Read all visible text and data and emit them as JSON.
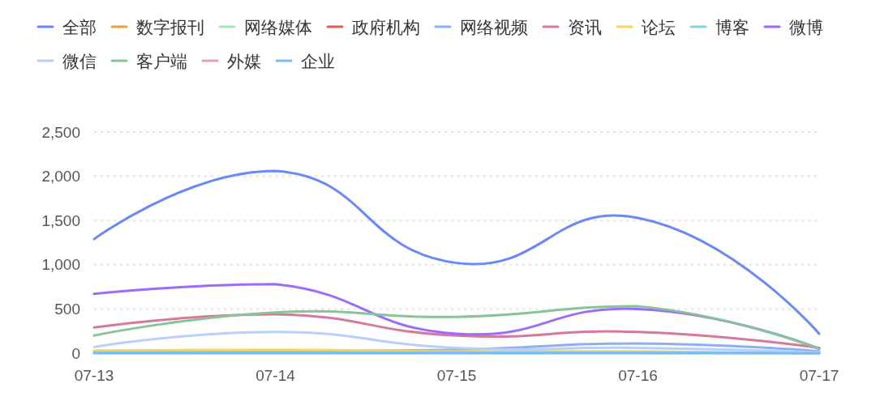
{
  "chart_data": {
    "type": "line",
    "categories": [
      "07-13",
      "07-14",
      "07-15",
      "07-16",
      "07-17"
    ],
    "series": [
      {
        "name": "全部",
        "color": "#6a88fc",
        "values": [
          1290,
          2060,
          1020,
          1530,
          220
        ]
      },
      {
        "name": "数字报刊",
        "color": "#e6a23c",
        "values": [
          null,
          null,
          null,
          null,
          null
        ]
      },
      {
        "name": "网络媒体",
        "color": "#a5e6b4",
        "values": [
          null,
          null,
          null,
          null,
          null
        ]
      },
      {
        "name": "政府机构",
        "color": "#e05a5a",
        "values": [
          null,
          null,
          null,
          null,
          null
        ]
      },
      {
        "name": "网络视频",
        "color": "#8caef8",
        "values": [
          20,
          30,
          40,
          110,
          20
        ]
      },
      {
        "name": "资讯",
        "color": "#d8789a",
        "values": [
          290,
          440,
          200,
          240,
          60
        ]
      },
      {
        "name": "论坛",
        "color": "#f5d55c",
        "values": [
          30,
          40,
          20,
          20,
          0
        ]
      },
      {
        "name": "博客",
        "color": "#8ad0e0",
        "values": [
          10,
          10,
          10,
          10,
          0
        ]
      },
      {
        "name": "微博",
        "color": "#9b6bfb",
        "values": [
          670,
          780,
          220,
          500,
          50
        ]
      },
      {
        "name": "微信",
        "color": "#b6cffc",
        "values": [
          70,
          240,
          60,
          60,
          10
        ]
      },
      {
        "name": "客户端",
        "color": "#88c49a",
        "values": [
          200,
          460,
          410,
          530,
          50
        ]
      },
      {
        "name": "外媒",
        "color": "#e6a0b4",
        "values": [
          null,
          null,
          null,
          null,
          null
        ]
      },
      {
        "name": "企业",
        "color": "#7ab8f6",
        "values": [
          0,
          0,
          0,
          0,
          0
        ]
      }
    ],
    "ylim": [
      0,
      2500
    ],
    "yticks": [
      0,
      500,
      {
        "value": 1000,
        "label": "1,000"
      },
      {
        "value": 1500,
        "label": "1,500"
      },
      {
        "value": 2000,
        "label": "2,000"
      },
      {
        "value": 2500,
        "label": "2,500"
      }
    ],
    "grid": "y",
    "legend": "top"
  }
}
